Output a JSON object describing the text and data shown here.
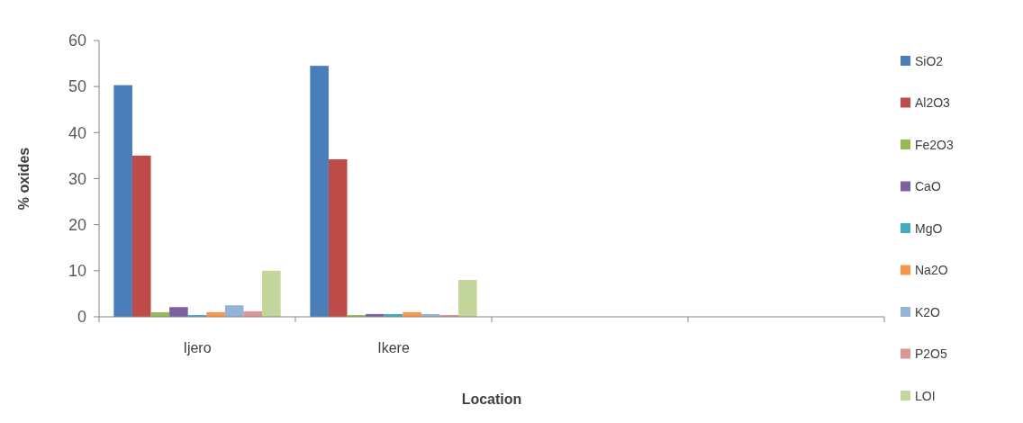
{
  "chart_data": {
    "type": "bar",
    "xlabel": "Location",
    "ylabel": "% oxides",
    "categories": [
      "Ijero",
      "Ikere",
      null,
      null
    ],
    "series": [
      {
        "name": "SiO2",
        "color": "#4a7ebb",
        "values": [
          50.3,
          54.5,
          null,
          null
        ]
      },
      {
        "name": "Al2O3",
        "color": "#be4b48",
        "values": [
          35,
          34.2,
          null,
          null
        ]
      },
      {
        "name": "Fe2O3",
        "color": "#98b954",
        "values": [
          1.0,
          0.4,
          null,
          null
        ]
      },
      {
        "name": "CaO",
        "color": "#7d60a0",
        "values": [
          2.1,
          0.6,
          null,
          null
        ]
      },
      {
        "name": "MgO",
        "color": "#46aac5",
        "values": [
          0.4,
          0.6,
          null,
          null
        ]
      },
      {
        "name": "Na2O",
        "color": "#f79646",
        "values": [
          1.0,
          1.0,
          null,
          null
        ]
      },
      {
        "name": "K2O",
        "color": "#95b3d7",
        "values": [
          2.5,
          0.6,
          null,
          null
        ]
      },
      {
        "name": "P2O5",
        "color": "#d99694",
        "values": [
          1.2,
          0.4,
          null,
          null
        ]
      },
      {
        "name": "LOI",
        "color": "#c3d69b",
        "values": [
          10,
          8,
          null,
          null
        ]
      }
    ],
    "ylim": [
      0,
      60
    ],
    "yticks": [
      0,
      10,
      20,
      30,
      40,
      50,
      60
    ],
    "legend": "right"
  }
}
